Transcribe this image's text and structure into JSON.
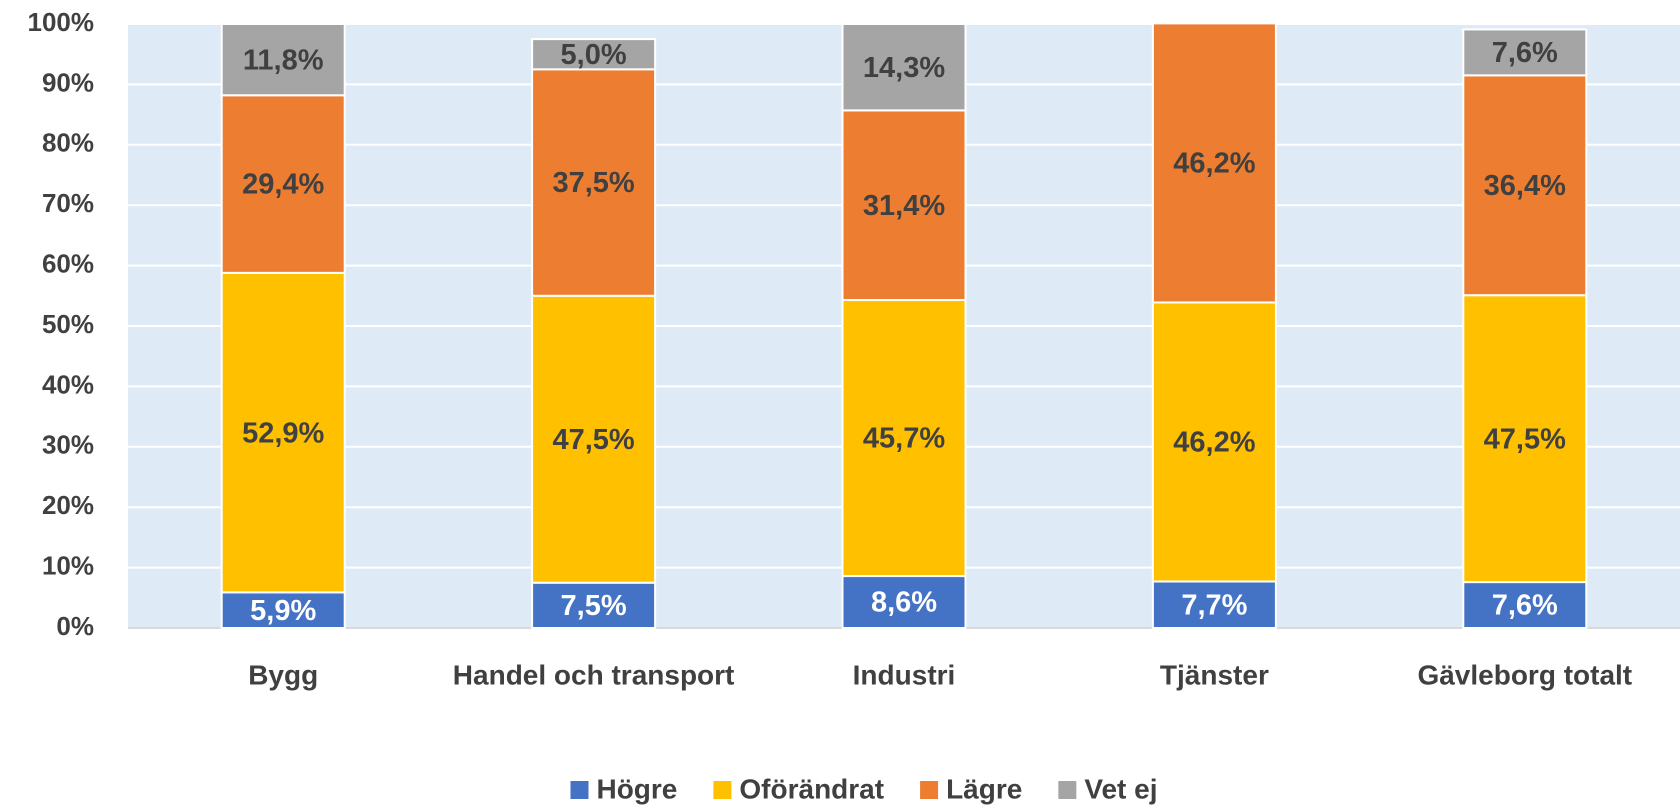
{
  "chart_data": {
    "type": "stacked_bar",
    "categories": [
      "Bygg",
      "Handel och transport",
      "Industri",
      "Tjänster",
      "Gävleborg totalt"
    ],
    "series": [
      {
        "name": "Högre",
        "color": "#4472c4",
        "values": [
          5.9,
          7.5,
          8.6,
          7.7,
          7.6
        ],
        "value_labels": [
          "5,9%",
          "7,5%",
          "8,6%",
          "7,7%",
          "7,6%"
        ]
      },
      {
        "name": "Oförändrat",
        "color": "#ffc000",
        "values": [
          52.9,
          47.5,
          45.7,
          46.2,
          47.5
        ],
        "value_labels": [
          "52,9%",
          "47,5%",
          "45,7%",
          "46,2%",
          "47,5%"
        ]
      },
      {
        "name": "Lägre",
        "color": "#ed7d31",
        "values": [
          29.4,
          37.5,
          31.4,
          46.2,
          36.4
        ],
        "value_labels": [
          "29,4%",
          "37,5%",
          "31,4%",
          "46,2%",
          "36,4%"
        ]
      },
      {
        "name": "Vet ej",
        "color": "#a5a5a5",
        "values": [
          11.8,
          5.0,
          14.3,
          0,
          7.6
        ],
        "value_labels": [
          "11,8%",
          "5,0%",
          "14,3%",
          null,
          "7,6%"
        ]
      }
    ],
    "ylim": [
      0,
      100
    ],
    "yticks": [
      {
        "value": 0,
        "label": "0%"
      },
      {
        "value": 10,
        "label": "10%"
      },
      {
        "value": 20,
        "label": "20%"
      },
      {
        "value": 30,
        "label": "30%"
      },
      {
        "value": 40,
        "label": "40%"
      },
      {
        "value": 50,
        "label": "50%"
      },
      {
        "value": 60,
        "label": "60%"
      },
      {
        "value": 70,
        "label": "70%"
      },
      {
        "value": 80,
        "label": "80%"
      },
      {
        "value": 90,
        "label": "90%"
      },
      {
        "value": 100,
        "label": "100%"
      }
    ],
    "grid": true,
    "legend": "bottom"
  }
}
